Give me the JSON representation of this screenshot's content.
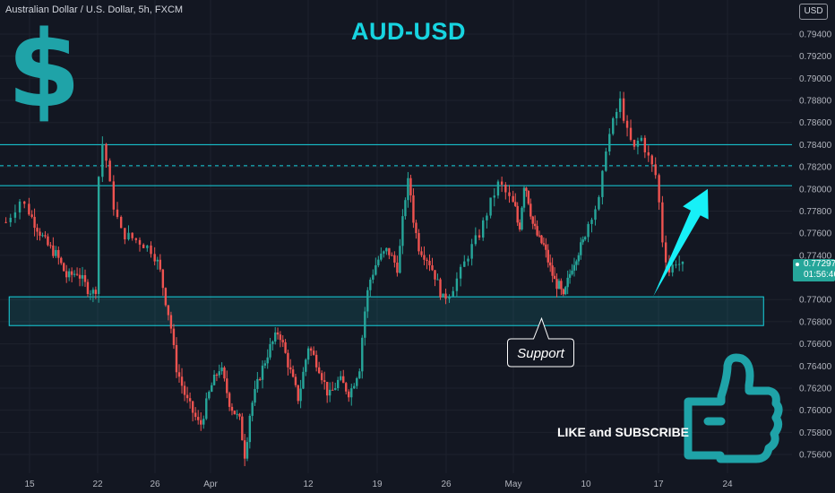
{
  "header": {
    "symbol_label": "Australian Dollar / U.S. Dollar, 5h, FXCM",
    "currency_badge": "USD"
  },
  "annotations": {
    "title": "AUD-USD",
    "dollar_sign": "$",
    "support_label": "Support",
    "like_subscribe": "LIKE and SUBSCRIBE"
  },
  "price_tag": {
    "price": "0.77297",
    "countdown": "01:56:46"
  },
  "colors": {
    "background": "#131722",
    "up_candle": "#26a69a",
    "down_candle": "#ef5350",
    "level_line": "#17d4e0",
    "support_zone": "#17d4e0",
    "arrow": "#17f0f7",
    "title": "#17d4e0",
    "dollar": "#1fa3a8",
    "thumb": "#1fa3a8"
  },
  "icons": [
    "dollar-sign-icon",
    "thumbs-up-icon",
    "arrow-up-icon"
  ],
  "chart_data": {
    "type": "candlestick",
    "y_axis": {
      "range": [
        0.755,
        0.796
      ],
      "ticks": [
        "0.79400",
        "0.79200",
        "0.79000",
        "0.78800",
        "0.78600",
        "0.78400",
        "0.78200",
        "0.78000",
        "0.77800",
        "0.77600",
        "0.77400",
        "0.77297",
        "0.77000",
        "0.76800",
        "0.76600",
        "0.76400",
        "0.76200",
        "0.76000",
        "0.75800",
        "0.75600"
      ],
      "tick_values": [
        0.794,
        0.792,
        0.79,
        0.788,
        0.786,
        0.784,
        0.782,
        0.78,
        0.778,
        0.776,
        0.774,
        0.77297,
        0.77,
        0.768,
        0.766,
        0.764,
        0.762,
        0.76,
        0.758,
        0.756
      ]
    },
    "x_axis": {
      "tick_labels": [
        "15",
        "22",
        "26",
        "Apr",
        "12",
        "19",
        "26",
        "May",
        "10",
        "17",
        "24"
      ],
      "tick_days": [
        0,
        7,
        11,
        17,
        28,
        35,
        42,
        47,
        56,
        63,
        70
      ],
      "day_range": [
        -2.5,
        75.5
      ]
    },
    "levels": [
      {
        "price": 0.784,
        "style": "solid"
      },
      {
        "price": 0.7821,
        "style": "dashed"
      },
      {
        "price": 0.7803,
        "style": "solid"
      }
    ],
    "support_zone": {
      "price_top": 0.77025,
      "price_bottom": 0.76765,
      "day_start": -1.8,
      "day_end": 73.0
    },
    "support_callout": {
      "text": "Support",
      "pointer_day": 50.5,
      "pointer_price": 0.7683
    },
    "arrow": {
      "from_day": 62.5,
      "from_price": 0.7703,
      "to_day": 68.0,
      "to_price": 0.78
    },
    "waypoints": [
      [
        -2.0,
        0.777
      ],
      [
        -0.8,
        0.779
      ],
      [
        0.5,
        0.7772
      ],
      [
        2.5,
        0.775
      ],
      [
        4.0,
        0.774
      ],
      [
        5.5,
        0.772
      ],
      [
        7.0,
        0.7725
      ],
      [
        8.5,
        0.771
      ],
      [
        9.7,
        0.7705
      ],
      [
        10.2,
        0.7835
      ],
      [
        10.6,
        0.7843
      ],
      [
        11.5,
        0.779
      ],
      [
        12.5,
        0.776
      ],
      [
        14.5,
        0.7752
      ],
      [
        15.6,
        0.7745
      ],
      [
        16.6,
        0.773
      ],
      [
        17.5,
        0.77
      ],
      [
        18.2,
        0.768
      ],
      [
        19.0,
        0.764
      ],
      [
        20.5,
        0.761
      ],
      [
        22.5,
        0.7585
      ],
      [
        24.0,
        0.762
      ],
      [
        25.5,
        0.764
      ],
      [
        27.0,
        0.7605
      ],
      [
        28.5,
        0.759
      ],
      [
        29.3,
        0.7558
      ],
      [
        30.1,
        0.76
      ],
      [
        31.5,
        0.763
      ],
      [
        33.0,
        0.7655
      ],
      [
        34.5,
        0.7672
      ],
      [
        36.0,
        0.764
      ],
      [
        37.5,
        0.761
      ],
      [
        39.0,
        0.7658
      ],
      [
        40.5,
        0.764
      ],
      [
        42.0,
        0.7612
      ],
      [
        43.5,
        0.7628
      ],
      [
        45.0,
        0.7615
      ],
      [
        46.5,
        0.764
      ],
      [
        47.0,
        0.768
      ],
      [
        47.8,
        0.7715
      ],
      [
        49.0,
        0.7735
      ],
      [
        50.5,
        0.7745
      ],
      [
        52.0,
        0.7728
      ],
      [
        53.0,
        0.779
      ],
      [
        53.6,
        0.781
      ],
      [
        54.3,
        0.777
      ],
      [
        55.0,
        0.7748
      ],
      [
        56.5,
        0.7735
      ],
      [
        57.5,
        0.772
      ],
      [
        58.5,
        0.77
      ],
      [
        59.5,
        0.7708
      ],
      [
        60.5,
        0.7725
      ],
      [
        61.5,
        0.7745
      ],
      [
        62.5,
        0.776
      ],
      [
        63.5,
        0.7785
      ],
      [
        64.5,
        0.7806
      ],
      [
        65.5,
        0.7792
      ],
      [
        66.5,
        0.778
      ],
      [
        67.0,
        0.776
      ],
      [
        68.0,
        0.7808
      ],
      [
        68.7,
        0.779
      ],
      [
        69.5,
        0.7768
      ],
      [
        70.5,
        0.7755
      ],
      [
        71.5,
        0.7748
      ],
      [
        72.5,
        0.773
      ],
      [
        73.5,
        0.7715
      ],
      [
        74.2,
        0.7712
      ],
      [
        75.0,
        0.77
      ],
      [
        75.5,
        0.7712
      ],
      [
        76.5,
        0.773
      ],
      [
        77.5,
        0.7742
      ],
      [
        78.5,
        0.7752
      ],
      [
        79.5,
        0.7775
      ],
      [
        80.5,
        0.779
      ],
      [
        81.2,
        0.7838
      ],
      [
        82.0,
        0.786
      ],
      [
        82.8,
        0.788
      ],
      [
        83.5,
        0.7852
      ],
      [
        84.3,
        0.7835
      ],
      [
        85.0,
        0.7848
      ],
      [
        85.8,
        0.783
      ],
      [
        86.8,
        0.781
      ],
      [
        87.5,
        0.775
      ],
      [
        88.2,
        0.7725
      ],
      [
        89.0,
        0.7735
      ],
      [
        89.8,
        0.773
      ]
    ],
    "time_axis_map": [
      [
        -2,
        -2.0
      ],
      [
        0,
        0
      ],
      [
        10,
        7
      ],
      [
        16,
        11
      ],
      [
        24,
        17
      ],
      [
        39,
        28
      ],
      [
        49,
        35
      ],
      [
        59,
        42
      ],
      [
        66,
        47
      ],
      [
        79,
        56
      ],
      [
        87,
        63
      ],
      [
        95,
        70
      ]
    ],
    "last_price": 0.77297
  }
}
